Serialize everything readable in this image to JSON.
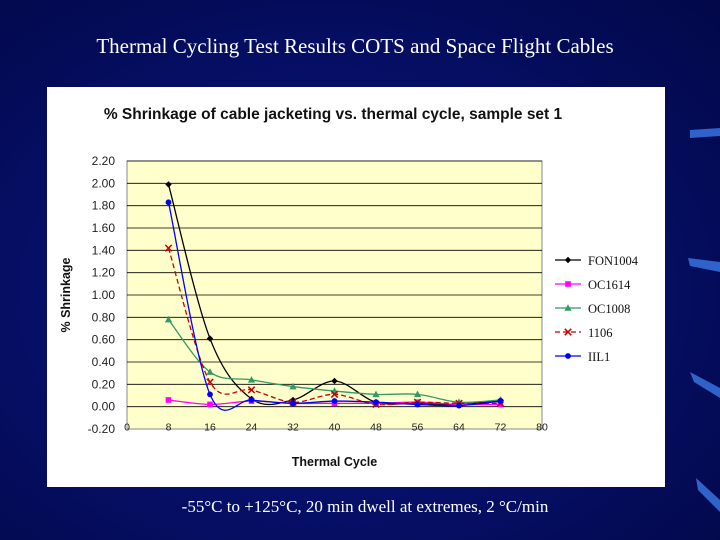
{
  "slide": {
    "title": "Thermal Cycling Test Results COTS and Space Flight Cables",
    "caption": "-55°C to +125°C, 20 min dwell at extremes, 2 °C/min"
  },
  "colors": {
    "background": "#030a55",
    "plot_area": "#ffffcc",
    "accent": "#3d72c4"
  },
  "chart_data": {
    "type": "line",
    "title": "% Shrinkage of cable jacketing vs. thermal cycle, sample set 1",
    "xlabel": "Thermal Cycle",
    "ylabel": "% Shrinkage",
    "xlim": [
      0,
      80
    ],
    "ylim": [
      -0.2,
      2.2
    ],
    "xticks": [
      "0",
      "8",
      "16",
      "24",
      "32",
      "40",
      "48",
      "56",
      "64",
      "72",
      "80"
    ],
    "yticks": [
      "2.20",
      "2.00",
      "1.80",
      "1.60",
      "1.40",
      "1.20",
      "1.00",
      "0.80",
      "0.60",
      "0.40",
      "0.20",
      "0.00",
      "-0.20"
    ],
    "grid": "horizontal",
    "smoothed": true,
    "legend_position": "right",
    "x": [
      8,
      16,
      24,
      32,
      40,
      48,
      56,
      64,
      72
    ],
    "series": [
      {
        "name": "FON1004",
        "color": "#000000",
        "marker": "diamond",
        "values": [
          1.99,
          0.61,
          0.07,
          0.06,
          0.23,
          0.04,
          0.03,
          0.02,
          0.06
        ]
      },
      {
        "name": "OC1614",
        "color": "#ff00ff",
        "marker": "square",
        "values": [
          0.06,
          0.02,
          0.05,
          0.03,
          0.03,
          0.03,
          0.04,
          0.02,
          0.02
        ]
      },
      {
        "name": "OC1008",
        "color": "#339966",
        "marker": "triangle",
        "values": [
          0.78,
          0.31,
          0.24,
          0.18,
          0.14,
          0.11,
          0.11,
          0.04,
          0.06
        ]
      },
      {
        "name": "1106",
        "color": "#cc0000",
        "marker": "x",
        "values": [
          1.42,
          0.22,
          0.15,
          0.04,
          0.11,
          0.02,
          0.04,
          0.03,
          0.03
        ]
      },
      {
        "name": "IIL1",
        "color": "#0000ff",
        "marker": "circle",
        "values": [
          1.83,
          0.11,
          0.06,
          0.03,
          0.05,
          0.04,
          0.02,
          0.01,
          0.05
        ]
      }
    ]
  }
}
